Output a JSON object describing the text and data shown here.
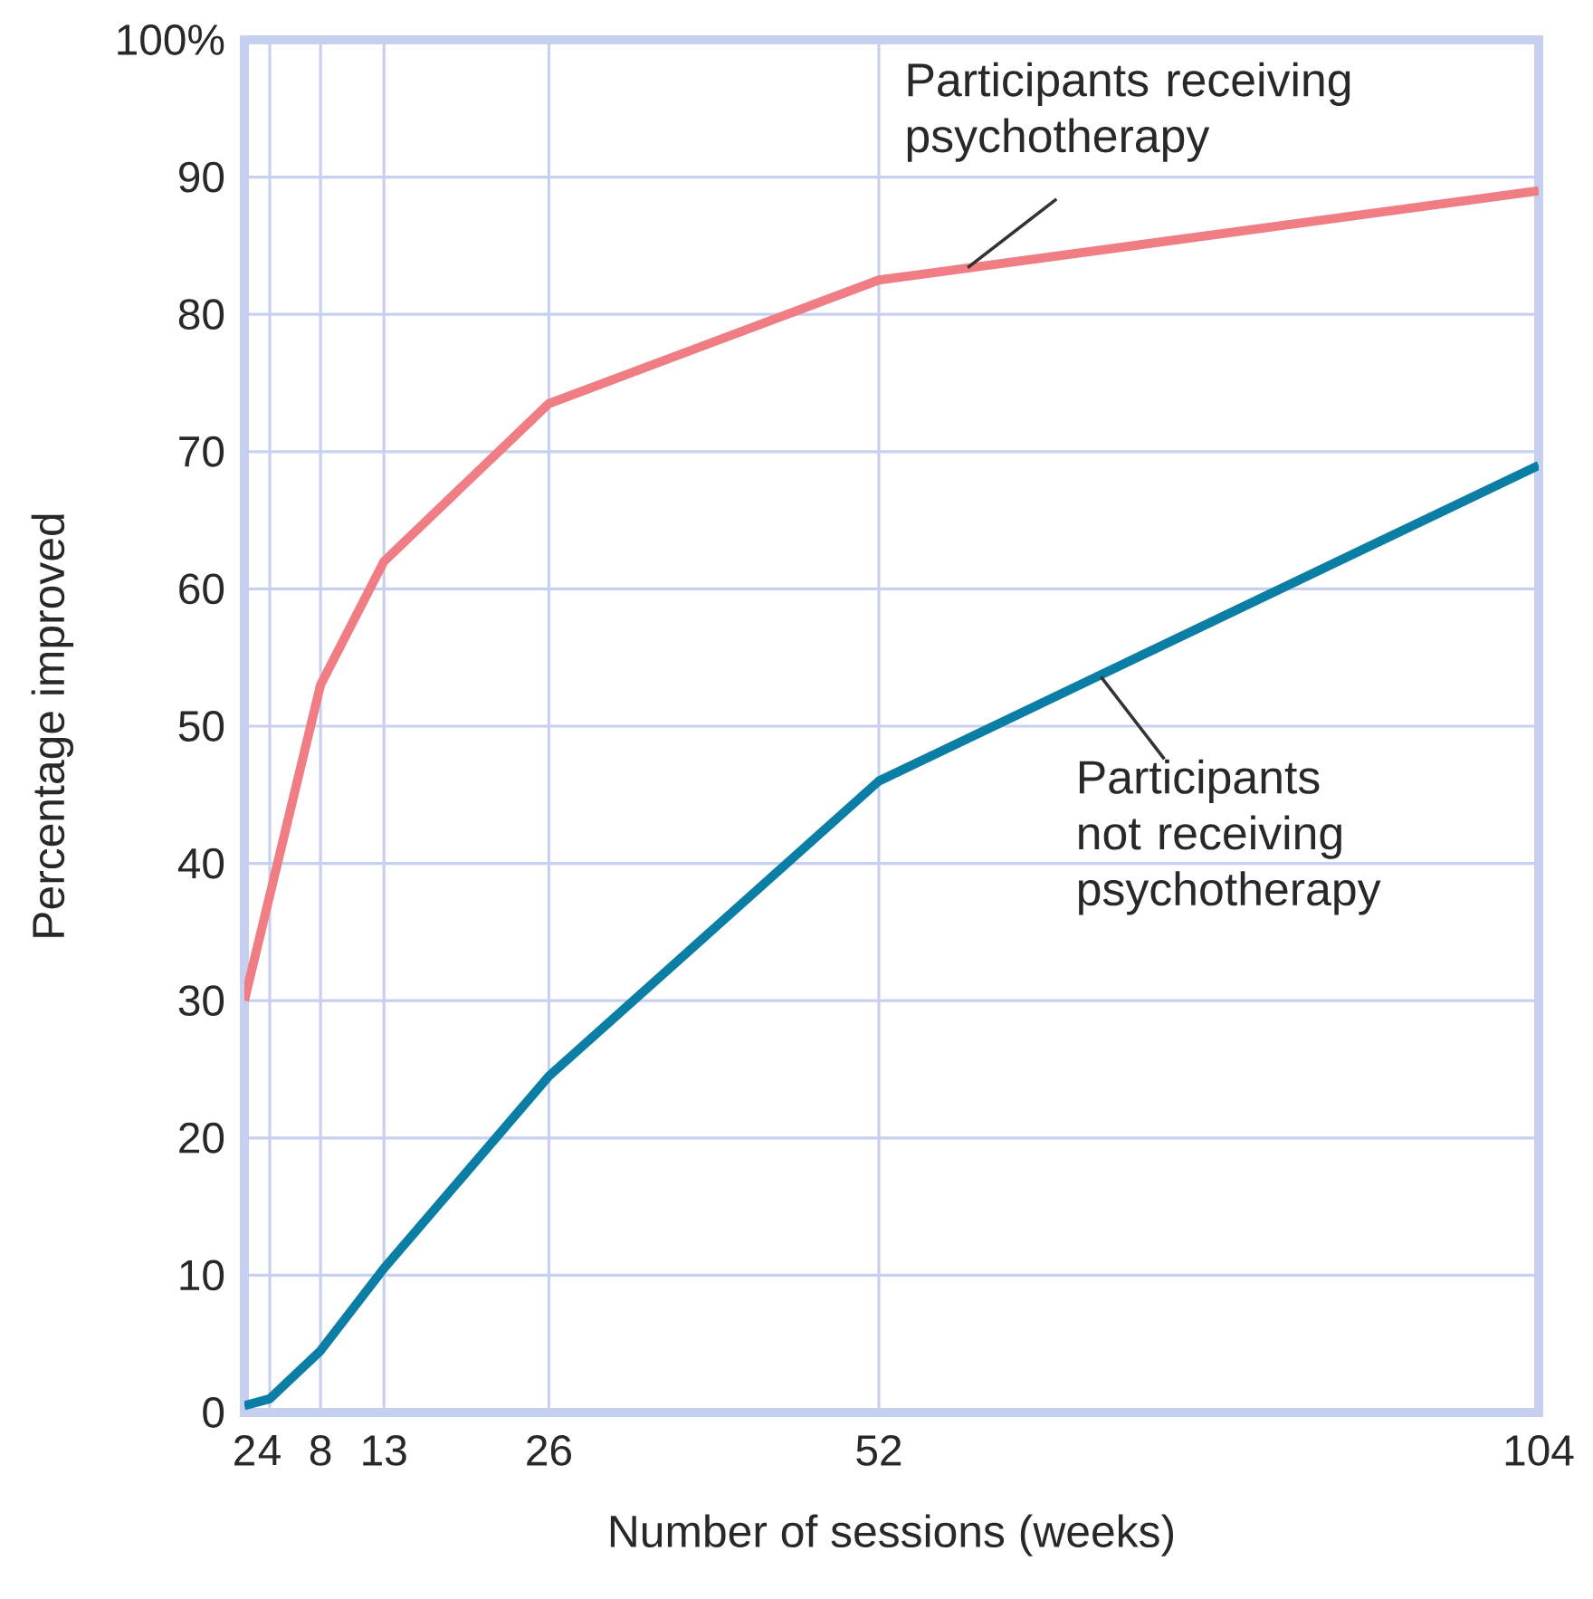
{
  "chart_data": {
    "type": "line",
    "xlabel": "Number of sessions (weeks)",
    "ylabel": "Percentage improved",
    "x": [
      2,
      8,
      13,
      26,
      52,
      104
    ],
    "series": [
      {
        "color": "#f07c84",
        "values": [
          30,
          53,
          62,
          73.5,
          82.5,
          89
        ]
      },
      {
        "color": "#0a7ea4",
        "x": [
          2,
          4,
          8,
          13,
          26,
          52,
          104
        ],
        "values": [
          0.5,
          1,
          4.5,
          10.5,
          24.5,
          46,
          69
        ]
      }
    ],
    "xlim": [
      2,
      104
    ],
    "xticks": [
      2,
      4,
      8,
      13,
      26,
      52,
      104
    ],
    "ylim": [
      0,
      100
    ],
    "yticks": [
      0,
      10,
      20,
      30,
      40,
      50,
      60,
      70,
      80,
      90,
      {
        "value": 100,
        "label": "100%"
      }
    ],
    "grid": true,
    "line_style": "solid",
    "annotations": [
      {
        "text": "Participants receiving psychotherapy",
        "x": 59,
        "y": 83.4
      },
      {
        "text": "Participants not receiving psychotherapy",
        "x": 69.5,
        "y": 53.6
      }
    ]
  }
}
